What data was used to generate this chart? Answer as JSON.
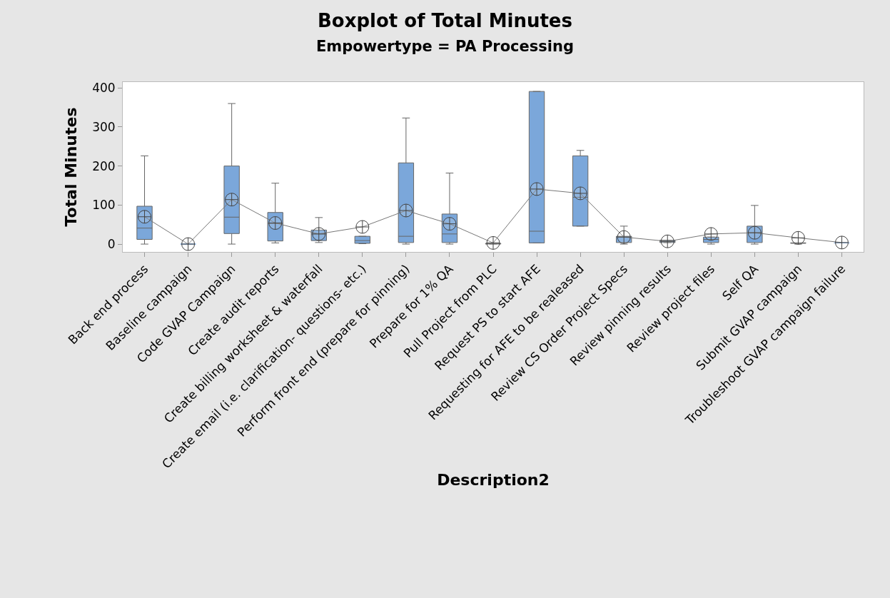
{
  "chart_data": {
    "type": "box",
    "title": "Boxplot of Total Minutes",
    "subtitle": "Empowertype = PA Processing",
    "xlabel": "Description2",
    "ylabel": "Total Minutes",
    "categories": [
      "Back end process",
      "Baseline campaign",
      "Code GVAP Campaign",
      "Create audit reports",
      "Create billing worksheet & waterfall",
      "Create email (i.e. clarification- questions- etc.)",
      "Perform front end (prepare for pinning)",
      "Prepare for 1% QA",
      "Pull Project from PLC",
      "Request PS to start AFE",
      "Requesting for AFE to be realeased",
      "Review CS Order Project Specs",
      "Review pinning results",
      "Review project files",
      "Self QA",
      "Submit GVAP campaign",
      "Troubleshoot GVAP campaign failure"
    ],
    "color": "#7ba7da",
    "marker": "cross",
    "series": [
      {
        "type": "line",
        "color": "#777777",
        "values": [
          70,
          0,
          114,
          54,
          26,
          44,
          86,
          52,
          3,
          141,
          130,
          18,
          7,
          26,
          29,
          16,
          4
        ]
      }
    ],
    "ylim": [
      -20,
      415
    ],
    "yticks": [
      0,
      100,
      200,
      300,
      400
    ],
    "boxes": [
      {
        "low": 0,
        "q1": 12,
        "median": 41,
        "q3": 97,
        "high": 226
      },
      {
        "low": 0,
        "q1": 0,
        "median": 0,
        "q3": 0,
        "high": 0
      },
      {
        "low": 0,
        "q1": 27,
        "median": 69,
        "q3": 200,
        "high": 360
      },
      {
        "low": 3,
        "q1": 8,
        "median": 53,
        "q3": 81,
        "high": 156
      },
      {
        "low": 4,
        "q1": 9,
        "median": 26,
        "q3": 36,
        "high": 68
      },
      {
        "low": 1,
        "q1": 2,
        "median": 9,
        "q3": 20,
        "high": 20
      },
      {
        "low": 0,
        "q1": 4,
        "median": 20,
        "q3": 208,
        "high": 323
      },
      {
        "low": 0,
        "q1": 4,
        "median": 26,
        "q3": 77,
        "high": 182
      },
      {
        "low": 0,
        "q1": 0,
        "median": 1,
        "q3": 2,
        "high": 2
      },
      {
        "low": 3,
        "q1": 3,
        "median": 33,
        "q3": 391,
        "high": 391
      },
      {
        "low": 46,
        "q1": 46,
        "median": 120,
        "q3": 226,
        "high": 240
      },
      {
        "low": 0,
        "q1": 4,
        "median": 19,
        "q3": 20,
        "high": 46
      },
      {
        "low": 4,
        "q1": 4,
        "median": 7,
        "q3": 10,
        "high": 10
      },
      {
        "low": 0,
        "q1": 4,
        "median": 12,
        "q3": 18,
        "high": 18
      },
      {
        "low": 0,
        "q1": 4,
        "median": 29,
        "q3": 46,
        "high": 99
      },
      {
        "low": 0,
        "q1": 2,
        "median": 3,
        "q3": 3,
        "high": 3
      },
      {
        "low": 3,
        "q1": 3,
        "median": 3,
        "q3": 3,
        "high": 3
      }
    ]
  }
}
